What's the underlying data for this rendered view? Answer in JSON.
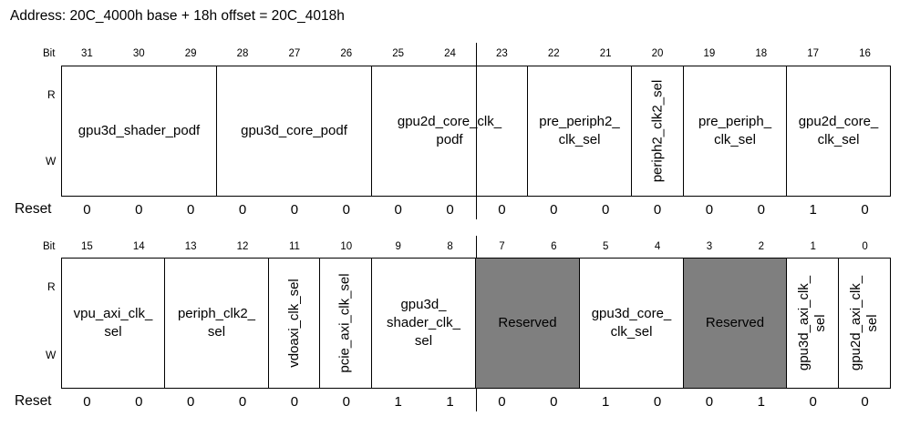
{
  "address_line": "Address: 20C_4000h base + 18h offset = 20C_4018h",
  "labels": {
    "bit": "Bit",
    "read": "R",
    "write": "W",
    "reset": "Reset"
  },
  "colors": {
    "reserved_fill": "#7f7f7f",
    "border": "#000000"
  },
  "upper": {
    "bits": [
      "31",
      "30",
      "29",
      "28",
      "27",
      "26",
      "25",
      "24",
      "23",
      "22",
      "21",
      "20",
      "19",
      "18",
      "17",
      "16"
    ],
    "fields": [
      {
        "name": "gpu3d_shader_podf",
        "msb": 31,
        "lsb": 29,
        "vertical": false,
        "reserved": false
      },
      {
        "name": "gpu3d_core_podf",
        "msb": 28,
        "lsb": 26,
        "vertical": false,
        "reserved": false
      },
      {
        "name": "gpu2d_core_clk_\npodf",
        "msb": 25,
        "lsb": 23,
        "vertical": false,
        "reserved": false
      },
      {
        "name": "pre_periph2_\nclk_sel",
        "msb": 22,
        "lsb": 21,
        "vertical": false,
        "reserved": false
      },
      {
        "name": "periph2_clk2_sel",
        "msb": 20,
        "lsb": 20,
        "vertical": true,
        "reserved": false
      },
      {
        "name": "pre_periph_\nclk_sel",
        "msb": 19,
        "lsb": 18,
        "vertical": false,
        "reserved": false
      },
      {
        "name": "gpu2d_core_\nclk_sel",
        "msb": 17,
        "lsb": 16,
        "vertical": false,
        "reserved": false
      }
    ],
    "reset": [
      "0",
      "0",
      "0",
      "0",
      "0",
      "0",
      "0",
      "0",
      "0",
      "0",
      "0",
      "0",
      "0",
      "0",
      "1",
      "0"
    ]
  },
  "lower": {
    "bits": [
      "15",
      "14",
      "13",
      "12",
      "11",
      "10",
      "9",
      "8",
      "7",
      "6",
      "5",
      "4",
      "3",
      "2",
      "1",
      "0"
    ],
    "fields": [
      {
        "name": "vpu_axi_clk_\nsel",
        "msb": 15,
        "lsb": 14,
        "vertical": false,
        "reserved": false
      },
      {
        "name": "periph_clk2_\nsel",
        "msb": 13,
        "lsb": 12,
        "vertical": false,
        "reserved": false
      },
      {
        "name": "vdoaxi_clk_sel",
        "msb": 11,
        "lsb": 11,
        "vertical": true,
        "reserved": false
      },
      {
        "name": "pcie_axi_clk_sel",
        "msb": 10,
        "lsb": 10,
        "vertical": true,
        "reserved": false
      },
      {
        "name": "gpu3d_\nshader_clk_\nsel",
        "msb": 9,
        "lsb": 8,
        "vertical": false,
        "reserved": false
      },
      {
        "name": "Reserved",
        "msb": 7,
        "lsb": 6,
        "vertical": false,
        "reserved": true
      },
      {
        "name": "gpu3d_core_\nclk_sel",
        "msb": 5,
        "lsb": 4,
        "vertical": false,
        "reserved": false
      },
      {
        "name": "Reserved",
        "msb": 3,
        "lsb": 2,
        "vertical": false,
        "reserved": true
      },
      {
        "name": "gpu3d_axi_clk_\nsel",
        "msb": 1,
        "lsb": 1,
        "vertical": true,
        "reserved": false
      },
      {
        "name": "gpu2d_axi_clk_\nsel",
        "msb": 0,
        "lsb": 0,
        "vertical": true,
        "reserved": false
      }
    ],
    "reset": [
      "0",
      "0",
      "0",
      "0",
      "0",
      "0",
      "1",
      "1",
      "0",
      "0",
      "1",
      "0",
      "0",
      "1",
      "0",
      "0"
    ]
  }
}
